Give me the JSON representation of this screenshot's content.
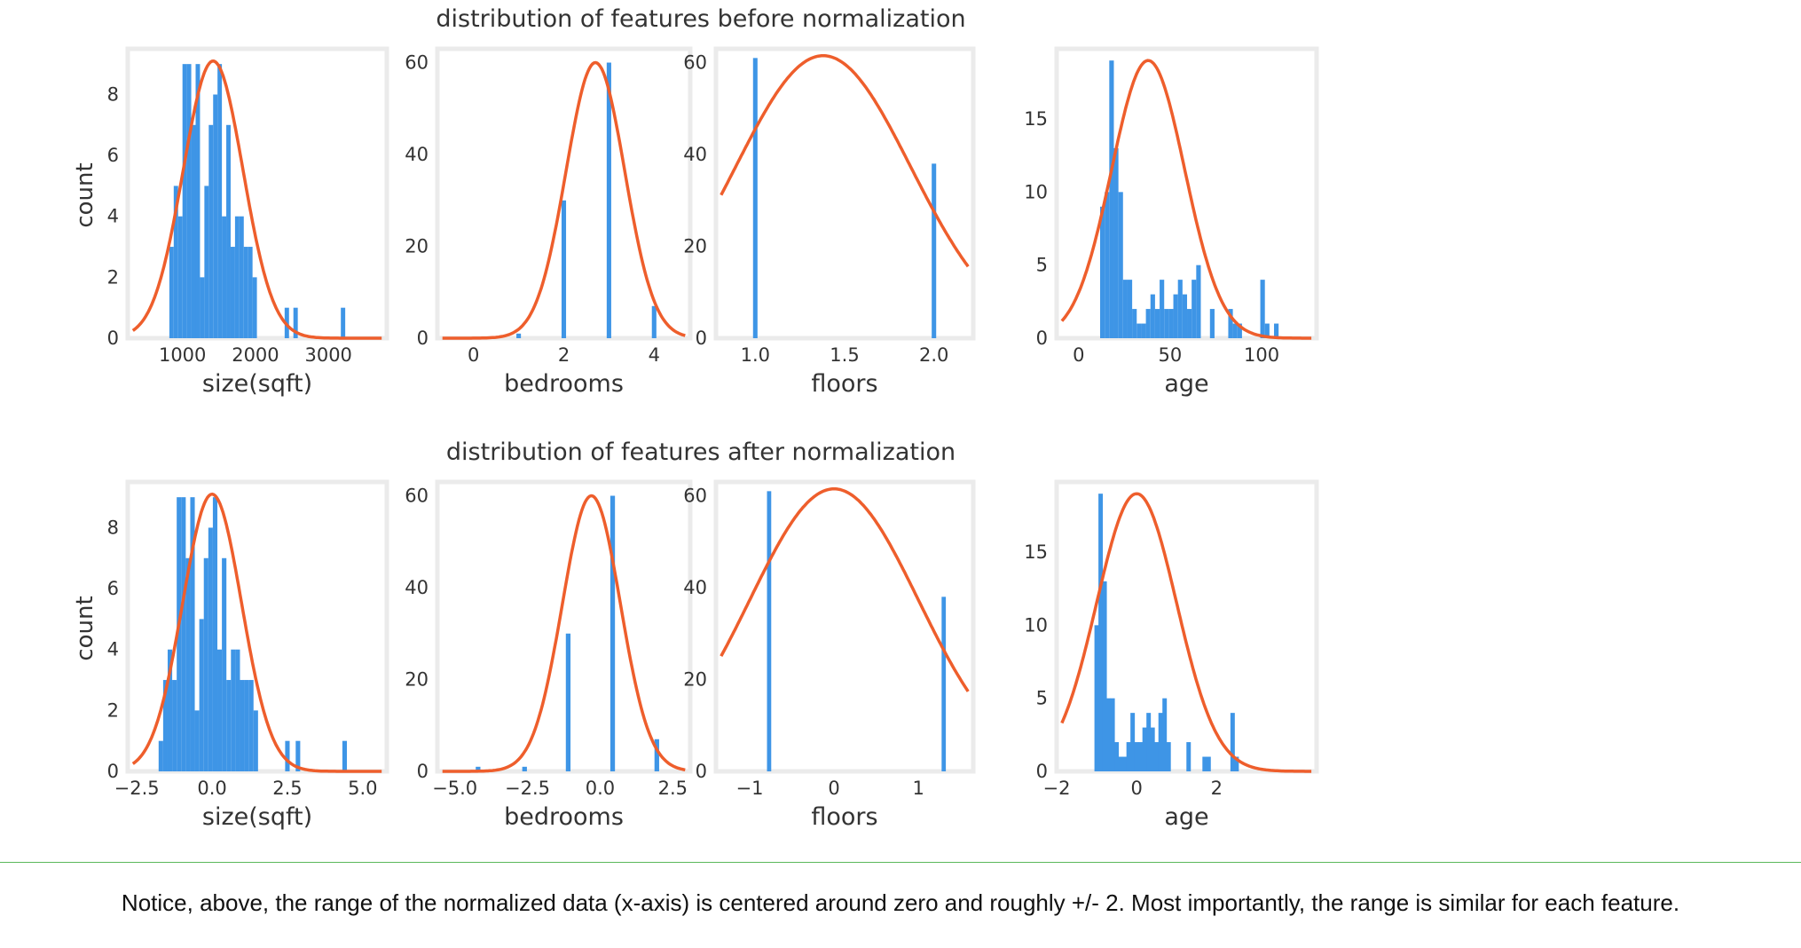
{
  "colors": {
    "bar": "#3e95e6",
    "curve": "#ee5e2c",
    "frame": "#ebebeb"
  },
  "note": "Notice, above, the range of the normalized data (x-axis) is centered around zero and roughly +/- 2. Most importantly, the range is similar for each feature.",
  "chart_data": [
    {
      "title": "distribution of features before normalization",
      "type": "bar",
      "ylabel": "count",
      "panels": [
        {
          "xlabel": "size(sqft)",
          "xlim": [
            250,
            3800
          ],
          "ylim": [
            0,
            9.5
          ],
          "xticks": [
            1000,
            2000,
            3000
          ],
          "xtick_labels": [
            "1000",
            "2000",
            "3000"
          ],
          "yticks": [
            0,
            2,
            4,
            6,
            8
          ],
          "ytick_labels": [
            "0",
            "2",
            "4",
            "6",
            "8"
          ],
          "bin_width": 60,
          "bar_x": [
            850,
            910,
            970,
            1030,
            1090,
            1150,
            1210,
            1270,
            1330,
            1390,
            1450,
            1510,
            1570,
            1630,
            1690,
            1750,
            1810,
            1870,
            1930,
            1990,
            2050,
            2430,
            2550,
            3200
          ],
          "bar_y": [
            3,
            5,
            4,
            9,
            9,
            7,
            9,
            2,
            5,
            7,
            8,
            9,
            4,
            7,
            3,
            4,
            4,
            3,
            3,
            2,
            0,
            1,
            1,
            1
          ],
          "curve": {
            "mean": 1420,
            "std": 410,
            "peak": 9.1
          }
        },
        {
          "xlabel": "bedrooms",
          "xlim": [
            -0.8,
            4.8
          ],
          "ylim": [
            0,
            63
          ],
          "xticks": [
            0,
            2,
            4
          ],
          "xtick_labels": [
            "0",
            "2",
            "4"
          ],
          "yticks": [
            0,
            20,
            40,
            60
          ],
          "ytick_labels": [
            "0",
            "20",
            "40",
            "60"
          ],
          "bin_width": 0.1,
          "bar_x": [
            1.0,
            2.0,
            3.0,
            4.0
          ],
          "bar_y": [
            1,
            30,
            60,
            7
          ],
          "curve": {
            "mean": 2.7,
            "std": 0.65,
            "peak": 60
          }
        },
        {
          "xlabel": "floors",
          "xlim": [
            0.78,
            2.22
          ],
          "ylim": [
            0,
            63
          ],
          "xticks": [
            1.0,
            1.5,
            2.0
          ],
          "xtick_labels": [
            "1.0",
            "1.5",
            "2.0"
          ],
          "yticks": [
            0,
            20,
            40,
            60
          ],
          "ytick_labels": [
            "0",
            "20",
            "40",
            "60"
          ],
          "bin_width": 0.025,
          "bar_x": [
            1.0,
            2.0
          ],
          "bar_y": [
            61,
            38
          ],
          "curve": {
            "mean": 1.38,
            "std": 0.49,
            "peak": 61.5
          }
        },
        {
          "xlabel": "age",
          "xlim": [
            -12,
            130
          ],
          "ylim": [
            0,
            19.8
          ],
          "xticks": [
            0,
            50,
            100
          ],
          "xtick_labels": [
            "0",
            "50",
            "100"
          ],
          "yticks": [
            0,
            5,
            10,
            15
          ],
          "ytick_labels": [
            "0",
            "5",
            "10",
            "15"
          ],
          "bin_width": 2.5,
          "bar_x": [
            13,
            15.5,
            18,
            20.5,
            23,
            25.5,
            28,
            30.5,
            33,
            35.5,
            38,
            40.5,
            43,
            45.5,
            48,
            50.5,
            53,
            55.5,
            58,
            60.5,
            63,
            65.5,
            68,
            70.5,
            73,
            75.5,
            78,
            80.5,
            83,
            85.5,
            88,
            90.5,
            93,
            95.5,
            98,
            100.5,
            103,
            105.5,
            108
          ],
          "bar_y": [
            9,
            10,
            19,
            13,
            10,
            4,
            4,
            2,
            1,
            1,
            2,
            3,
            2,
            4,
            2,
            2,
            3,
            4,
            3,
            2,
            4,
            5,
            0,
            0,
            2,
            0,
            0,
            0,
            2,
            1,
            1,
            0,
            0,
            0,
            0,
            4,
            1,
            0,
            1
          ],
          "curve": {
            "mean": 38,
            "std": 20,
            "peak": 19
          }
        }
      ]
    },
    {
      "title": "distribution of features after normalization",
      "type": "bar",
      "ylabel": "count",
      "panels": [
        {
          "xlabel": "size(sqft)",
          "xlim": [
            -2.8,
            5.8
          ],
          "ylim": [
            0,
            9.5
          ],
          "xticks": [
            -2.5,
            0.0,
            2.5,
            5.0
          ],
          "xtick_labels": [
            "−2.5",
            "0.0",
            "2.5",
            "5.0"
          ],
          "yticks": [
            0,
            2,
            4,
            6,
            8
          ],
          "ytick_labels": [
            "0",
            "2",
            "4",
            "6",
            "8"
          ],
          "bin_width": 0.15,
          "bar_x": [
            -1.7,
            -1.55,
            -1.4,
            -1.25,
            -1.1,
            -0.95,
            -0.8,
            -0.65,
            -0.5,
            -0.35,
            -0.2,
            -0.05,
            0.1,
            0.25,
            0.4,
            0.55,
            0.7,
            0.85,
            1.0,
            1.15,
            1.3,
            1.45,
            2.5,
            2.85,
            4.4
          ],
          "bar_y": [
            1,
            3,
            4,
            3,
            9,
            9,
            7,
            9,
            2,
            5,
            7,
            8,
            9,
            4,
            7,
            3,
            4,
            4,
            3,
            3,
            3,
            2,
            1,
            1,
            1
          ],
          "curve": {
            "mean": 0.0,
            "std": 0.98,
            "peak": 9.1
          }
        },
        {
          "xlabel": "bedrooms",
          "xlim": [
            -5.6,
            3.1
          ],
          "ylim": [
            0,
            63
          ],
          "xticks": [
            -5.0,
            -2.5,
            0.0,
            2.5
          ],
          "xtick_labels": [
            "−5.0",
            "−2.5",
            "0.0",
            "2.5"
          ],
          "yticks": [
            0,
            20,
            40,
            60
          ],
          "ytick_labels": [
            "0",
            "20",
            "40",
            "60"
          ],
          "bin_width": 0.16,
          "bar_x": [
            -4.2,
            -2.6,
            -1.1,
            0.43,
            1.95
          ],
          "bar_y": [
            1,
            1,
            30,
            60,
            7
          ],
          "curve": {
            "mean": -0.3,
            "std": 1.0,
            "peak": 60
          }
        },
        {
          "xlabel": "floors",
          "xlim": [
            -1.4,
            1.65
          ],
          "ylim": [
            0,
            63
          ],
          "xticks": [
            -1,
            0,
            1
          ],
          "xtick_labels": [
            "−1",
            "0",
            "1"
          ],
          "yticks": [
            0,
            20,
            40,
            60
          ],
          "ytick_labels": [
            "0",
            "20",
            "40",
            "60"
          ],
          "bin_width": 0.05,
          "bar_x": [
            -0.77,
            1.3
          ],
          "bar_y": [
            61,
            38
          ],
          "curve": {
            "mean": 0.0,
            "std": 1.0,
            "peak": 61.5
          }
        },
        {
          "xlabel": "age",
          "xlim": [
            -2.0,
            4.5
          ],
          "ylim": [
            0,
            19.8
          ],
          "xticks": [
            -2,
            0,
            2
          ],
          "xtick_labels": [
            "−2",
            "0",
            "2"
          ],
          "yticks": [
            0,
            5,
            10,
            15
          ],
          "ytick_labels": [
            "0",
            "5",
            "10",
            "15"
          ],
          "bin_width": 0.11,
          "bar_x": [
            -1.0,
            -0.9,
            -0.8,
            -0.7,
            -0.6,
            -0.5,
            -0.4,
            -0.3,
            -0.2,
            -0.1,
            0.0,
            0.1,
            0.2,
            0.3,
            0.4,
            0.5,
            0.6,
            0.7,
            0.8,
            0.9,
            1.0,
            1.1,
            1.3,
            1.7,
            1.8,
            2.4,
            2.5
          ],
          "bar_y": [
            10,
            19,
            13,
            5,
            5,
            2,
            1,
            1,
            2,
            4,
            2,
            2,
            3,
            4,
            3,
            2,
            4,
            5,
            2,
            0,
            0,
            0,
            2,
            1,
            1,
            4,
            1
          ],
          "curve": {
            "mean": 0.0,
            "std": 1.0,
            "peak": 19
          }
        }
      ]
    }
  ]
}
